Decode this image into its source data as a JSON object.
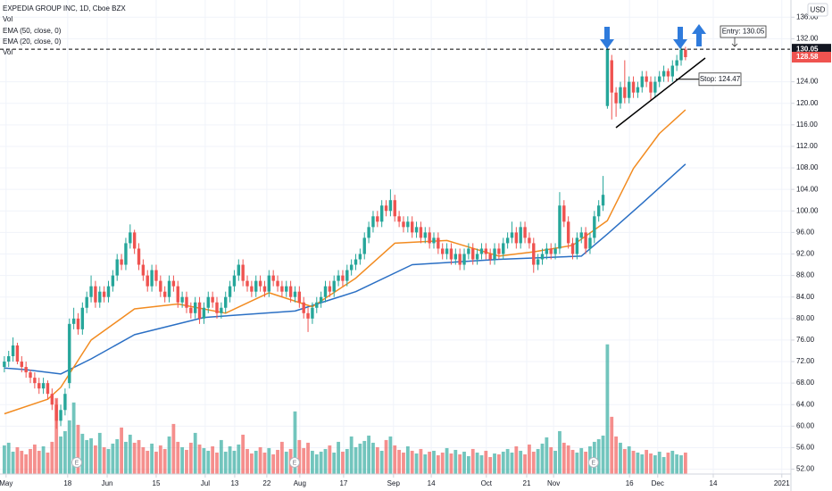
{
  "chart_data": {
    "type": "candlestick",
    "title": "EXPEDIA GROUP INC, 1D, Cboe BZX",
    "currency": "USD",
    "volume_labels": [
      "Vol",
      "Vol"
    ],
    "colors": {
      "up": "#26a69a",
      "down": "#ef5350"
    },
    "xlim": [
      -1,
      181.1
    ],
    "xticks": [
      {
        "value": 0.4,
        "label": "May"
      },
      {
        "value": 14.6,
        "label": "18"
      },
      {
        "value": 23.7,
        "label": "Jun"
      },
      {
        "value": 35,
        "label": "15"
      },
      {
        "value": 46.3,
        "label": "Jul"
      },
      {
        "value": 53.1,
        "label": "13"
      },
      {
        "value": 60.5,
        "label": "22"
      },
      {
        "value": 68.1,
        "label": "Aug"
      },
      {
        "value": 78.2,
        "label": "17"
      },
      {
        "value": 89.7,
        "label": "Sep"
      },
      {
        "value": 98.4,
        "label": "14"
      },
      {
        "value": 111.1,
        "label": "Oct"
      },
      {
        "value": 120.4,
        "label": "21"
      },
      {
        "value": 126.6,
        "label": "Nov"
      },
      {
        "value": 144.1,
        "label": "16"
      },
      {
        "value": 150.6,
        "label": "Dec"
      },
      {
        "value": 163.4,
        "label": "14"
      },
      {
        "value": 179.2,
        "label": "2021"
      }
    ],
    "ylim": [
      51.1,
      139.2
    ],
    "yticks": [
      {
        "value": 52,
        "label": "52.00"
      },
      {
        "value": 56,
        "label": "56.00"
      },
      {
        "value": 60,
        "label": "60.00"
      },
      {
        "value": 64,
        "label": "64.00"
      },
      {
        "value": 68,
        "label": "68.00"
      },
      {
        "value": 72,
        "label": "72.00"
      },
      {
        "value": 76,
        "label": "76.00"
      },
      {
        "value": 80,
        "label": "80.00"
      },
      {
        "value": 84,
        "label": "84.00"
      },
      {
        "value": 88,
        "label": "88.00"
      },
      {
        "value": 92,
        "label": "92.00"
      },
      {
        "value": 96,
        "label": "96.00"
      },
      {
        "value": 100,
        "label": "100.00"
      },
      {
        "value": 104,
        "label": "104.00"
      },
      {
        "value": 108,
        "label": "108.00"
      },
      {
        "value": 112,
        "label": "112.00"
      },
      {
        "value": 116,
        "label": "116.00"
      },
      {
        "value": 120,
        "label": "120.00"
      },
      {
        "value": 124,
        "label": "124.00"
      },
      {
        "value": 132,
        "label": "132.00"
      },
      {
        "value": 136,
        "label": "136.00"
      }
    ],
    "grid": true,
    "volume_ylim": [
      0,
      53
    ],
    "ohlc": [
      [
        71,
        73,
        70,
        72
      ],
      [
        72,
        74,
        71,
        73
      ],
      [
        73,
        76.5,
        72,
        75
      ],
      [
        75,
        75.5,
        71.5,
        72
      ],
      [
        72,
        73,
        70,
        71
      ],
      [
        71,
        72,
        69,
        70
      ],
      [
        70,
        70.5,
        68,
        69
      ],
      [
        69,
        70,
        67,
        68
      ],
      [
        68,
        69,
        66,
        67
      ],
      [
        67,
        69,
        66,
        68
      ],
      [
        68,
        68.5,
        65,
        66
      ],
      [
        66,
        67,
        63,
        64
      ],
      [
        64,
        65,
        59.5,
        61
      ],
      [
        61,
        64,
        60,
        63
      ],
      [
        63,
        67,
        62,
        66
      ],
      [
        68,
        80,
        67,
        79
      ],
      [
        79,
        82,
        78,
        80
      ],
      [
        80,
        81,
        77,
        78
      ],
      [
        78,
        83,
        77,
        82
      ],
      [
        82,
        85,
        81,
        84
      ],
      [
        84,
        88,
        83,
        86
      ],
      [
        86,
        87,
        82,
        83
      ],
      [
        83,
        86,
        82,
        85
      ],
      [
        85,
        86,
        83,
        84
      ],
      [
        84,
        87,
        83,
        86
      ],
      [
        86,
        89,
        85,
        88
      ],
      [
        88,
        92,
        87,
        91
      ],
      [
        91,
        92,
        89,
        90
      ],
      [
        90,
        95,
        89,
        94
      ],
      [
        94,
        97.5,
        93,
        96
      ],
      [
        96,
        96.5,
        92,
        93
      ],
      [
        93,
        94,
        89,
        90
      ],
      [
        90,
        91,
        87,
        88
      ],
      [
        88,
        89,
        85,
        86
      ],
      [
        86,
        90,
        85,
        89
      ],
      [
        89,
        90,
        86,
        87
      ],
      [
        87,
        88,
        84,
        85
      ],
      [
        85,
        86,
        83,
        84
      ],
      [
        84,
        88,
        83,
        87
      ],
      [
        87,
        88,
        85,
        86
      ],
      [
        86,
        87,
        82,
        83
      ],
      [
        83,
        85,
        82,
        84
      ],
      [
        84,
        85,
        81,
        82
      ],
      [
        82,
        83,
        80,
        81
      ],
      [
        81,
        84,
        80,
        83
      ],
      [
        83,
        84,
        79,
        80
      ],
      [
        80,
        83,
        79,
        82
      ],
      [
        82,
        85,
        81,
        84
      ],
      [
        84,
        85,
        82,
        83
      ],
      [
        83,
        84,
        80,
        81
      ],
      [
        81,
        83,
        80,
        82
      ],
      [
        82,
        85,
        81,
        84
      ],
      [
        84,
        87,
        83,
        86
      ],
      [
        86,
        89,
        85,
        88
      ],
      [
        88,
        91,
        87,
        90
      ],
      [
        90,
        91,
        86,
        87
      ],
      [
        87,
        88,
        85,
        86
      ],
      [
        86,
        87,
        84,
        85
      ],
      [
        85,
        88,
        84,
        87
      ],
      [
        87,
        88,
        85,
        86
      ],
      [
        86,
        87,
        84,
        85
      ],
      [
        85,
        89,
        84,
        88
      ],
      [
        88,
        89,
        86,
        87
      ],
      [
        87,
        88,
        85,
        86
      ],
      [
        86,
        87,
        84,
        85
      ],
      [
        85,
        87,
        84,
        86
      ],
      [
        86,
        87,
        83,
        84
      ],
      [
        84,
        86,
        83,
        85
      ],
      [
        85,
        86,
        82,
        83
      ],
      [
        83,
        84,
        80,
        81
      ],
      [
        81,
        82,
        77.5,
        80
      ],
      [
        80,
        83,
        79,
        82
      ],
      [
        82,
        84,
        81,
        83
      ],
      [
        83,
        85,
        82,
        84
      ],
      [
        84,
        87,
        83,
        86
      ],
      [
        86,
        87,
        84,
        85
      ],
      [
        85,
        88,
        84,
        87
      ],
      [
        87,
        89,
        86,
        88
      ],
      [
        88,
        89,
        86,
        87
      ],
      [
        87,
        90,
        86,
        89
      ],
      [
        89,
        91,
        88,
        90
      ],
      [
        90,
        92,
        89,
        91
      ],
      [
        91,
        93,
        90,
        92
      ],
      [
        92,
        96,
        91,
        95
      ],
      [
        95,
        98,
        94,
        97
      ],
      [
        97,
        100,
        96,
        99
      ],
      [
        99,
        100,
        97,
        98
      ],
      [
        98,
        102,
        97,
        101
      ],
      [
        101,
        102,
        99,
        100
      ],
      [
        100,
        104,
        99,
        102
      ],
      [
        102,
        103,
        98,
        99
      ],
      [
        99,
        100,
        97,
        98
      ],
      [
        98,
        99,
        96,
        97
      ],
      [
        97,
        99,
        96,
        98
      ],
      [
        98,
        99,
        95,
        96
      ],
      [
        96,
        98,
        95,
        97
      ],
      [
        97,
        98,
        94,
        95
      ],
      [
        95,
        97,
        94,
        96
      ],
      [
        96,
        97,
        93,
        94
      ],
      [
        94,
        96,
        93,
        95
      ],
      [
        95,
        96,
        92,
        93
      ],
      [
        93,
        94,
        91,
        92
      ],
      [
        92,
        94,
        91,
        93
      ],
      [
        93,
        94,
        90,
        91
      ],
      [
        91,
        93,
        90,
        92
      ],
      [
        92,
        93,
        89,
        90
      ],
      [
        90,
        93,
        89,
        92
      ],
      [
        92,
        94,
        91,
        93
      ],
      [
        93,
        94,
        90,
        91
      ],
      [
        91,
        93,
        90,
        92
      ],
      [
        92,
        94,
        91,
        93
      ],
      [
        93,
        94,
        91,
        92
      ],
      [
        92,
        93,
        90,
        91
      ],
      [
        91,
        94,
        90,
        93
      ],
      [
        93,
        94,
        91,
        92
      ],
      [
        92,
        95,
        91,
        94
      ],
      [
        94,
        96,
        93,
        95
      ],
      [
        95,
        98,
        94,
        96
      ],
      [
        96,
        97,
        93,
        94
      ],
      [
        94,
        98,
        93,
        97
      ],
      [
        97,
        98,
        94,
        95
      ],
      [
        95,
        96,
        93,
        94
      ],
      [
        94,
        95,
        88.5,
        90
      ],
      [
        90,
        92,
        89,
        91
      ],
      [
        91,
        93,
        90,
        92
      ],
      [
        92,
        94,
        91,
        93
      ],
      [
        93,
        94,
        91,
        92
      ],
      [
        92,
        94,
        91,
        93
      ],
      [
        93,
        103.5,
        92,
        101
      ],
      [
        101,
        102,
        97,
        98
      ],
      [
        98,
        99,
        93,
        94
      ],
      [
        94,
        95,
        91,
        92
      ],
      [
        92,
        96,
        91,
        95
      ],
      [
        95,
        97,
        94,
        96
      ],
      [
        96,
        97,
        92,
        93
      ],
      [
        93,
        96,
        92,
        95
      ],
      [
        95,
        100,
        94,
        99
      ],
      [
        99,
        102,
        98,
        101
      ],
      [
        101,
        106.5,
        100,
        103
      ],
      [
        119.5,
        131,
        119,
        130
      ],
      [
        128,
        129,
        117,
        122
      ],
      [
        122,
        123,
        117.5,
        120
      ],
      [
        120,
        124,
        119,
        123
      ],
      [
        123,
        128,
        120,
        121
      ],
      [
        121,
        125,
        120,
        124
      ],
      [
        124,
        125,
        121,
        122
      ],
      [
        122,
        124,
        121,
        123
      ],
      [
        123,
        126,
        122,
        125
      ],
      [
        125,
        126,
        123,
        124
      ],
      [
        124,
        125,
        120.5,
        122
      ],
      [
        122,
        125,
        121,
        124
      ],
      [
        124,
        126,
        123,
        125
      ],
      [
        125,
        127,
        124,
        126
      ],
      [
        126,
        126.5,
        124,
        125
      ],
      [
        125,
        128,
        124,
        127
      ],
      [
        127,
        129,
        126,
        128
      ],
      [
        128,
        131,
        127,
        130
      ],
      [
        130,
        130.5,
        128,
        128.58
      ]
    ],
    "volume": [
      3.2,
      3.5,
      2.5,
      3,
      2.6,
      2.2,
      2.8,
      3.3,
      2.6,
      3.1,
      2.4,
      3.6,
      8.5,
      4.2,
      4.8,
      6,
      8,
      5.5,
      4.5,
      3.8,
      4,
      3.2,
      4.6,
      3,
      2.8,
      3.4,
      3.9,
      5.2,
      3.6,
      4.4,
      3.5,
      3.8,
      3,
      2.6,
      3.4,
      2.5,
      3.2,
      2.8,
      4.2,
      5.6,
      3.6,
      3,
      2.7,
      3.5,
      4.6,
      3.3,
      2.9,
      2.6,
      3.1,
      2.4,
      3.8,
      2.5,
      3.1,
      2.6,
      3.3,
      4.4,
      2.8,
      2.3,
      2.6,
      3,
      2.4,
      2.9,
      2.2,
      2.7,
      3.6,
      2.5,
      2.8,
      7,
      3.8,
      2.9,
      3.5,
      2.6,
      2.2,
      2.5,
      2.8,
      3.2,
      2.4,
      3.6,
      2.5,
      2.8,
      4.2,
      3,
      3.4,
      3.7,
      4.3,
      3.5,
      3,
      2.6,
      3.8,
      4.2,
      3.2,
      2.7,
      2.4,
      3.1,
      2.6,
      2.3,
      2.8,
      2.2,
      2.5,
      2.6,
      2.1,
      2.4,
      2.9,
      2.3,
      2.7,
      2.2,
      2.5,
      2,
      2.8,
      2.4,
      2.1,
      2.6,
      1.9,
      2.3,
      2.2,
      2.5,
      2.8,
      2.4,
      3.1,
      2.6,
      2.2,
      3.3,
      2.5,
      2.8,
      3.4,
      4.1,
      3,
      2.6,
      4.8,
      3.5,
      3.2,
      2.7,
      2.4,
      2.9,
      2.5,
      3.1,
      3.6,
      3.9,
      4.3,
      14.5,
      6.4,
      4.2,
      3.5,
      2.8,
      3.1,
      2.6,
      2.4,
      2.2,
      2.7,
      2.3,
      2.1,
      2.5,
      1.9,
      2.4,
      2.6,
      2.2,
      2.1,
      2.4
    ],
    "series": [
      {
        "name": "EMA (50, close, 0)",
        "color": "#2a6fc4",
        "x": [
          0,
          5,
          13,
          20,
          30,
          46,
          67,
          81,
          94,
          114,
          133,
          139,
          147,
          157
        ],
        "values": [
          70.8,
          70.5,
          69.7,
          72.5,
          77,
          80.2,
          81.4,
          85,
          90,
          91,
          91.6,
          95.7,
          101.4,
          108.7
        ]
      },
      {
        "name": "EMA (20, close, 0)",
        "color": "#f28b20",
        "x": [
          0,
          10,
          13,
          20,
          30,
          40,
          51,
          61,
          71,
          81,
          90,
          102,
          114,
          122,
          131,
          139,
          145,
          151,
          157
        ],
        "values": [
          62.3,
          65,
          67.2,
          76,
          81.8,
          82.7,
          81,
          84.8,
          82.2,
          87.5,
          94,
          94.5,
          91.6,
          92.4,
          93.6,
          98.2,
          107.9,
          114.4,
          118.8
        ]
      }
    ],
    "earnings": {
      "label": "E",
      "x": [
        16.7,
        66.9,
        135.8
      ]
    },
    "entry_label": "Entry: 130.05",
    "entry_value": 130.05,
    "stop_label": "Stop: 124.47",
    "stop_value": 124.47
  }
}
